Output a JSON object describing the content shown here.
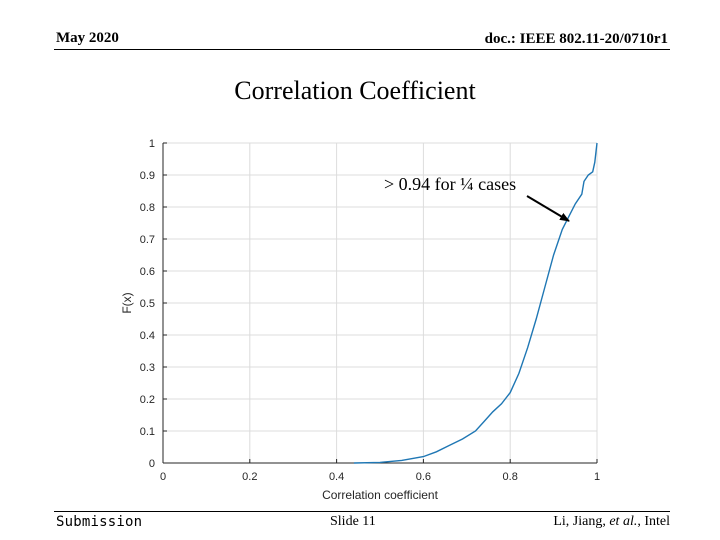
{
  "header": {
    "date": "May 2020",
    "doc": "doc.: IEEE 802.11-20/0710r1"
  },
  "slide_title": "Correlation Coefficient",
  "footer": {
    "left": "Submission",
    "center": "Slide 11",
    "right_names": "Li, Jiang, ",
    "right_etal": "et al.",
    "right_org": ", Intel"
  },
  "colors": {
    "series": "#1f77b4",
    "grid": "#dcdcdc",
    "axis": "#262626"
  },
  "chart_data": {
    "type": "line",
    "title": "",
    "xlabel": "Correlation coefficient",
    "ylabel": "F(x)",
    "xlim": [
      0,
      1
    ],
    "ylim": [
      0,
      1
    ],
    "x_ticks": [
      0,
      0.2,
      0.4,
      0.6,
      0.8,
      1
    ],
    "x_tick_labels": [
      "0",
      "0.2",
      "0.4",
      "0.6",
      "0.8",
      "1"
    ],
    "y_ticks": [
      0,
      0.1,
      0.2,
      0.3,
      0.4,
      0.5,
      0.6,
      0.7,
      0.8,
      0.9,
      1
    ],
    "y_tick_labels": [
      "0",
      "0.1",
      "0.2",
      "0.3",
      "0.4",
      "0.5",
      "0.6",
      "0.7",
      "0.8",
      "0.9",
      "1"
    ],
    "grid": true,
    "series": [
      {
        "x": [
          0.44,
          0.5,
          0.55,
          0.6,
          0.63,
          0.66,
          0.69,
          0.72,
          0.74,
          0.76,
          0.78,
          0.8,
          0.82,
          0.84,
          0.86,
          0.88,
          0.9,
          0.92,
          0.935,
          0.95,
          0.965,
          0.97,
          0.98,
          0.99,
          0.995,
          1.0
        ],
        "y": [
          0.0,
          0.002,
          0.008,
          0.02,
          0.035,
          0.055,
          0.075,
          0.1,
          0.13,
          0.16,
          0.185,
          0.22,
          0.28,
          0.36,
          0.45,
          0.55,
          0.65,
          0.73,
          0.77,
          0.81,
          0.84,
          0.88,
          0.9,
          0.91,
          0.94,
          1.0
        ]
      }
    ],
    "annotation": {
      "text": "> 0.94 for ¼ cases",
      "x": 0.94,
      "y": 0.755
    }
  }
}
